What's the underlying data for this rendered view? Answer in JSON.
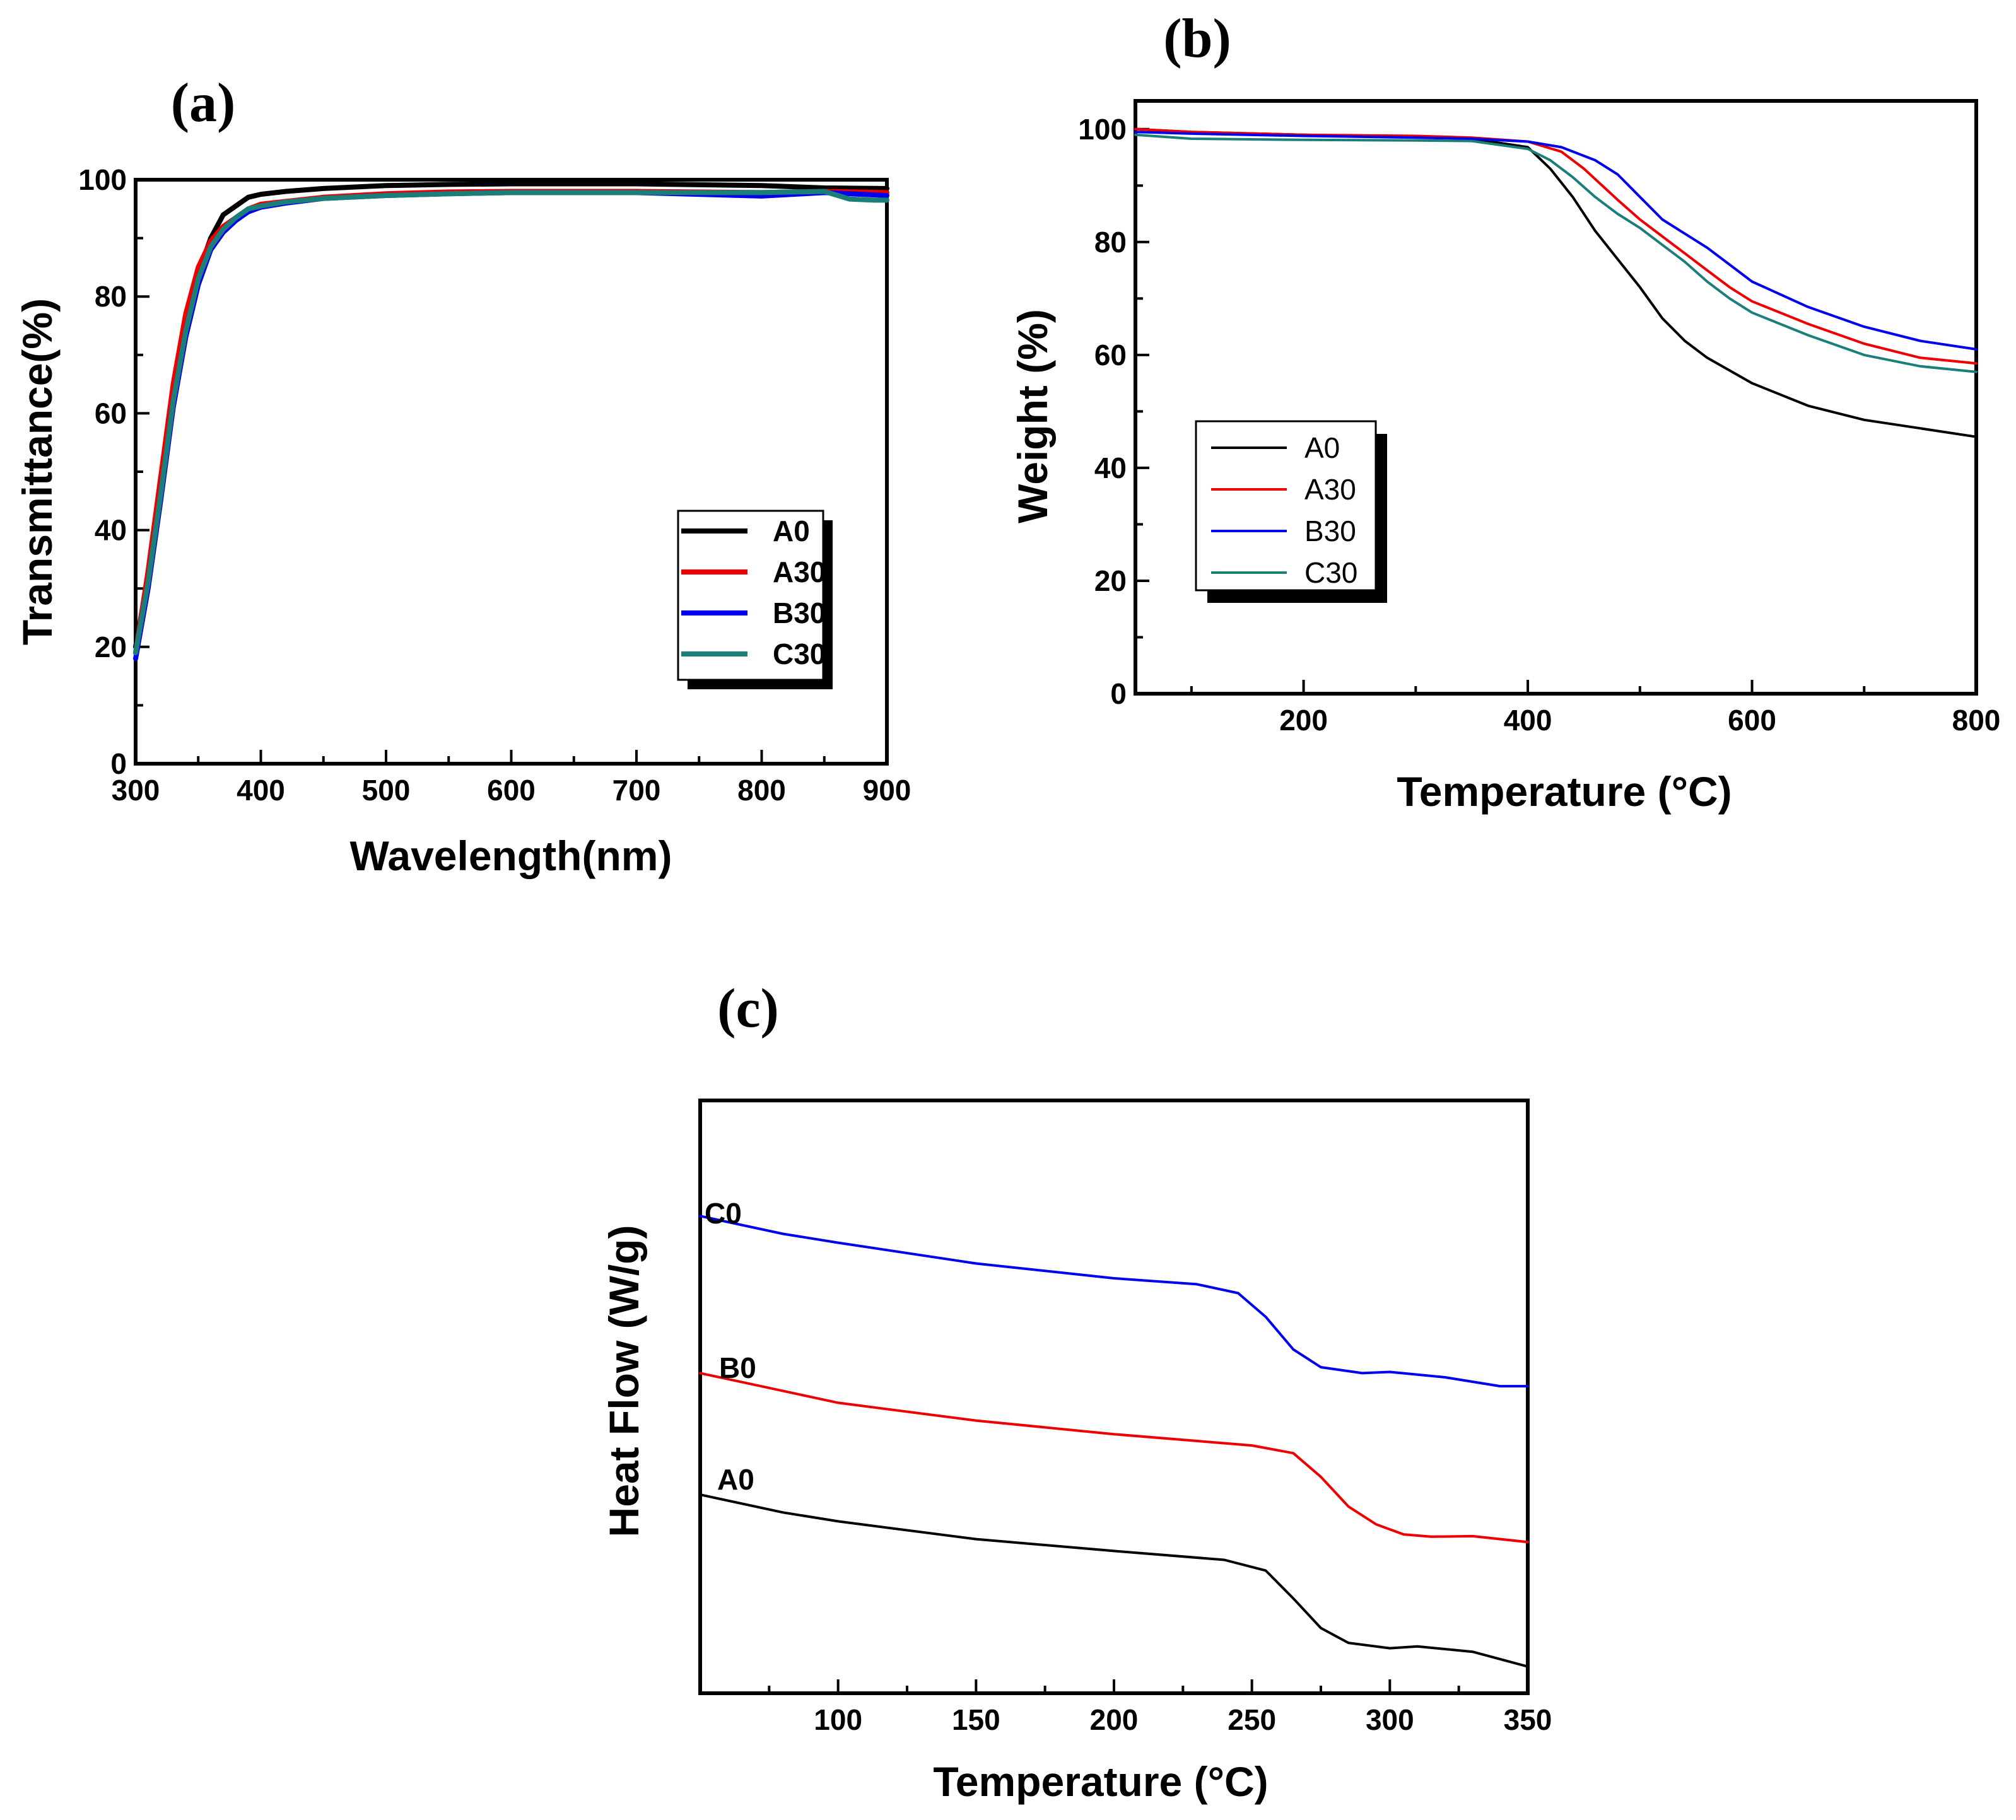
{
  "chart_data": [
    {
      "panel": "(a)",
      "type": "line",
      "xlabel": "Wavelength(nm)",
      "ylabel": "Transmittance(%)",
      "xlim": [
        300,
        900
      ],
      "ylim": [
        0,
        100
      ],
      "xticks": [
        300,
        400,
        500,
        600,
        700,
        800,
        900
      ],
      "yticks": [
        0,
        20,
        40,
        60,
        80,
        100
      ],
      "legend_position": "bottom-right",
      "series": [
        {
          "name": "A0",
          "color": "#000000",
          "x": [
            300,
            310,
            320,
            330,
            340,
            350,
            360,
            370,
            380,
            390,
            400,
            420,
            450,
            500,
            550,
            600,
            700,
            800,
            850,
            900
          ],
          "y": [
            20,
            32,
            48,
            63,
            75,
            84,
            90,
            94,
            95.5,
            97,
            97.5,
            98,
            98.5,
            99,
            99.2,
            99.3,
            99.3,
            99,
            98.6,
            98.5
          ]
        },
        {
          "name": "A30",
          "color": "#ee0000",
          "x": [
            300,
            310,
            320,
            330,
            340,
            350,
            360,
            370,
            380,
            390,
            400,
            420,
            450,
            500,
            550,
            600,
            700,
            800,
            850,
            900
          ],
          "y": [
            19,
            33,
            49,
            65,
            77,
            85,
            89.5,
            92,
            93.5,
            95,
            95.8,
            96.3,
            97,
            97.6,
            97.9,
            98,
            98,
            97.8,
            98,
            97.8
          ]
        },
        {
          "name": "B30",
          "color": "#0000ee",
          "x": [
            300,
            310,
            320,
            330,
            340,
            350,
            360,
            370,
            380,
            390,
            400,
            420,
            450,
            500,
            550,
            600,
            700,
            800,
            850,
            900
          ],
          "y": [
            18,
            30,
            45,
            61,
            73,
            82,
            88,
            91,
            93,
            94.5,
            95.3,
            96,
            96.8,
            97.3,
            97.6,
            97.8,
            97.8,
            97.2,
            97.8,
            97.3
          ]
        },
        {
          "name": "C30",
          "color": "#1a7f78",
          "x": [
            300,
            310,
            320,
            330,
            340,
            350,
            360,
            370,
            380,
            390,
            400,
            420,
            450,
            500,
            550,
            600,
            700,
            800,
            850,
            870,
            890,
            900
          ],
          "y": [
            19,
            31,
            46,
            62,
            74,
            83,
            88.5,
            91.5,
            93.5,
            95,
            95.5,
            96.2,
            96.8,
            97.3,
            97.6,
            97.8,
            97.8,
            97.8,
            98,
            96.7,
            96.5,
            96.5
          ]
        }
      ]
    },
    {
      "panel": "(b)",
      "type": "line",
      "xlabel": "Temperature (°C)",
      "ylabel": "Weight (%)",
      "xlim": [
        50,
        800
      ],
      "ylim": [
        0,
        105
      ],
      "xticks": [
        200,
        400,
        600,
        800
      ],
      "yticks": [
        0,
        20,
        40,
        60,
        80,
        100
      ],
      "legend_position": "center-left",
      "series": [
        {
          "name": "A0",
          "color": "#000000",
          "x": [
            50,
            100,
            200,
            300,
            350,
            400,
            420,
            440,
            460,
            480,
            500,
            520,
            540,
            560,
            600,
            650,
            700,
            750,
            800
          ],
          "y": [
            100,
            99.5,
            99,
            98.6,
            98.3,
            96.8,
            93,
            88,
            82,
            77,
            72,
            66.5,
            62.5,
            59.5,
            55,
            51,
            48.5,
            47,
            45.5
          ]
        },
        {
          "name": "A30",
          "color": "#ee0000",
          "x": [
            50,
            100,
            200,
            300,
            350,
            400,
            430,
            450,
            480,
            500,
            520,
            540,
            560,
            580,
            600,
            650,
            700,
            750,
            800
          ],
          "y": [
            100,
            99.5,
            99,
            98.8,
            98.5,
            97.8,
            96,
            93,
            87.5,
            84,
            81,
            78,
            75,
            72,
            69.5,
            65.5,
            62,
            59.5,
            58.5
          ]
        },
        {
          "name": "B30",
          "color": "#0000ee",
          "x": [
            50,
            100,
            200,
            300,
            350,
            400,
            430,
            460,
            480,
            500,
            520,
            540,
            560,
            580,
            600,
            650,
            700,
            750,
            800
          ],
          "y": [
            99.5,
            99.2,
            98.8,
            98.5,
            98.3,
            97.8,
            96.8,
            94.5,
            92,
            88,
            84,
            81.5,
            79,
            76,
            73,
            68.5,
            65,
            62.5,
            61
          ]
        },
        {
          "name": "C30",
          "color": "#1a7f78",
          "x": [
            50,
            100,
            200,
            300,
            350,
            400,
            420,
            440,
            460,
            480,
            500,
            520,
            540,
            560,
            580,
            600,
            650,
            700,
            750,
            800
          ],
          "y": [
            99,
            98.3,
            98.1,
            98,
            97.9,
            96.5,
            94.5,
            91.5,
            88,
            85,
            82.5,
            79.5,
            76.5,
            73,
            70,
            67.5,
            63.5,
            60,
            58,
            57
          ]
        }
      ]
    },
    {
      "panel": "(c)",
      "type": "line",
      "xlabel": "Temperature (°C)",
      "ylabel": "Heat Flow (W/g)",
      "xlim": [
        50,
        350
      ],
      "ylim": [
        0,
        100
      ],
      "xticks": [
        100,
        150,
        200,
        250,
        300,
        350
      ],
      "yticks": [],
      "curve_labels": [
        "C0",
        "B0",
        "A0"
      ],
      "series": [
        {
          "name": "C0",
          "color": "#0000ee",
          "x": [
            50,
            80,
            100,
            150,
            200,
            230,
            245,
            255,
            265,
            275,
            290,
            300,
            320,
            340,
            350
          ],
          "y": [
            80.5,
            77.5,
            76,
            72.5,
            70,
            69,
            67.5,
            63.5,
            58,
            55,
            54,
            54.2,
            53.3,
            51.8,
            51.8
          ]
        },
        {
          "name": "B0",
          "color": "#ee0000",
          "x": [
            50,
            80,
            100,
            150,
            200,
            250,
            265,
            275,
            285,
            295,
            305,
            315,
            330,
            350
          ],
          "y": [
            54,
            51,
            49,
            46,
            43.7,
            41.8,
            40.5,
            36.5,
            31.5,
            28.5,
            26.8,
            26.4,
            26.5,
            25.5
          ]
        },
        {
          "name": "A0",
          "color": "#000000",
          "x": [
            50,
            80,
            100,
            150,
            200,
            240,
            255,
            265,
            275,
            285,
            300,
            310,
            330,
            350
          ],
          "y": [
            33.5,
            30.5,
            29,
            26,
            24,
            22.5,
            20.7,
            16,
            11,
            8.5,
            7.6,
            7.9,
            7,
            4.5
          ]
        }
      ]
    }
  ]
}
